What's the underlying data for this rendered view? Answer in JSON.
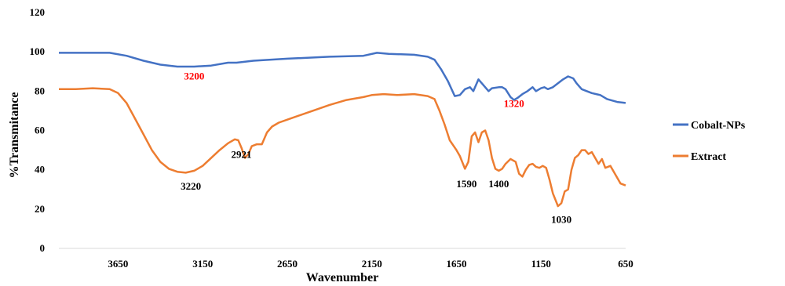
{
  "chart_data": {
    "type": "line",
    "xlabel": "Wavenumber",
    "ylabel": "%Transmitance",
    "xlim": [
      4000,
      650
    ],
    "ylim": [
      0,
      120
    ],
    "x_reversed": true,
    "xticks": [
      3650,
      3150,
      2650,
      2150,
      1650,
      1150,
      650
    ],
    "yticks": [
      0,
      20,
      40,
      60,
      80,
      100,
      120
    ],
    "grid": false,
    "legend": "right",
    "series": [
      {
        "name": "Cobalt-NPs",
        "color": "#4472C4",
        "points": [
          [
            4000,
            99.5
          ],
          [
            3850,
            99.5
          ],
          [
            3700,
            99.5
          ],
          [
            3600,
            98
          ],
          [
            3500,
            95.5
          ],
          [
            3400,
            93.5
          ],
          [
            3300,
            92.5
          ],
          [
            3200,
            92.5
          ],
          [
            3100,
            93
          ],
          [
            3000,
            94.5
          ],
          [
            2950,
            94.5
          ],
          [
            2850,
            95.5
          ],
          [
            2650,
            96.5
          ],
          [
            2400,
            97.5
          ],
          [
            2200,
            98
          ],
          [
            2120,
            99.5
          ],
          [
            2050,
            99
          ],
          [
            1900,
            98.5
          ],
          [
            1820,
            97.5
          ],
          [
            1780,
            96
          ],
          [
            1740,
            91
          ],
          [
            1700,
            85
          ],
          [
            1660,
            77.5
          ],
          [
            1630,
            78
          ],
          [
            1600,
            81
          ],
          [
            1570,
            82
          ],
          [
            1550,
            80
          ],
          [
            1520,
            86
          ],
          [
            1500,
            84
          ],
          [
            1480,
            82
          ],
          [
            1460,
            80
          ],
          [
            1440,
            81.5
          ],
          [
            1400,
            82
          ],
          [
            1380,
            82
          ],
          [
            1360,
            81
          ],
          [
            1330,
            77
          ],
          [
            1310,
            75.5
          ],
          [
            1290,
            76.5
          ],
          [
            1260,
            78.5
          ],
          [
            1230,
            80
          ],
          [
            1200,
            82
          ],
          [
            1180,
            80
          ],
          [
            1150,
            81.5
          ],
          [
            1130,
            82
          ],
          [
            1110,
            81
          ],
          [
            1080,
            82
          ],
          [
            1050,
            84
          ],
          [
            1020,
            86
          ],
          [
            990,
            87.5
          ],
          [
            960,
            86.5
          ],
          [
            940,
            84
          ],
          [
            910,
            81
          ],
          [
            880,
            80
          ],
          [
            850,
            79
          ],
          [
            800,
            78
          ],
          [
            760,
            76
          ],
          [
            700,
            74.5
          ],
          [
            650,
            74
          ]
        ]
      },
      {
        "name": "Extract",
        "color": "#ED7D31",
        "points": [
          [
            4000,
            81
          ],
          [
            3900,
            81
          ],
          [
            3800,
            81.5
          ],
          [
            3700,
            81
          ],
          [
            3650,
            79
          ],
          [
            3600,
            74
          ],
          [
            3550,
            66
          ],
          [
            3500,
            58
          ],
          [
            3450,
            50
          ],
          [
            3400,
            44
          ],
          [
            3350,
            40.5
          ],
          [
            3300,
            39
          ],
          [
            3250,
            38.5
          ],
          [
            3200,
            39.5
          ],
          [
            3150,
            42
          ],
          [
            3100,
            46
          ],
          [
            3050,
            50
          ],
          [
            3000,
            53.5
          ],
          [
            2960,
            55.5
          ],
          [
            2940,
            55
          ],
          [
            2920,
            51
          ],
          [
            2900,
            46
          ],
          [
            2880,
            48
          ],
          [
            2860,
            52
          ],
          [
            2830,
            53
          ],
          [
            2800,
            53
          ],
          [
            2770,
            59
          ],
          [
            2740,
            62
          ],
          [
            2700,
            64
          ],
          [
            2650,
            65.5
          ],
          [
            2500,
            70
          ],
          [
            2400,
            73
          ],
          [
            2300,
            75.5
          ],
          [
            2200,
            77
          ],
          [
            2150,
            78
          ],
          [
            2080,
            78.5
          ],
          [
            2000,
            78
          ],
          [
            1900,
            78.5
          ],
          [
            1820,
            77.5
          ],
          [
            1780,
            76
          ],
          [
            1750,
            70
          ],
          [
            1720,
            63
          ],
          [
            1690,
            55
          ],
          [
            1650,
            50
          ],
          [
            1630,
            47
          ],
          [
            1600,
            40.5
          ],
          [
            1580,
            44
          ],
          [
            1560,
            57
          ],
          [
            1540,
            59
          ],
          [
            1520,
            54
          ],
          [
            1500,
            59
          ],
          [
            1480,
            60
          ],
          [
            1460,
            55
          ],
          [
            1440,
            46
          ],
          [
            1420,
            40.5
          ],
          [
            1400,
            39.5
          ],
          [
            1380,
            40.5
          ],
          [
            1360,
            43
          ],
          [
            1330,
            45.5
          ],
          [
            1300,
            44
          ],
          [
            1280,
            38
          ],
          [
            1260,
            36.5
          ],
          [
            1240,
            40
          ],
          [
            1220,
            42.5
          ],
          [
            1200,
            43
          ],
          [
            1180,
            41.5
          ],
          [
            1160,
            41
          ],
          [
            1140,
            42
          ],
          [
            1120,
            41
          ],
          [
            1100,
            35
          ],
          [
            1080,
            28
          ],
          [
            1050,
            21.5
          ],
          [
            1030,
            23
          ],
          [
            1010,
            29
          ],
          [
            990,
            30
          ],
          [
            970,
            40
          ],
          [
            950,
            46
          ],
          [
            930,
            47.5
          ],
          [
            910,
            50
          ],
          [
            890,
            50
          ],
          [
            870,
            48
          ],
          [
            850,
            49
          ],
          [
            830,
            46
          ],
          [
            810,
            43
          ],
          [
            790,
            45.5
          ],
          [
            770,
            41
          ],
          [
            740,
            42
          ],
          [
            720,
            39
          ],
          [
            700,
            36
          ],
          [
            680,
            33
          ],
          [
            650,
            32
          ]
        ]
      }
    ],
    "annotations": [
      {
        "text": "3200",
        "x": 3200,
        "y": 86,
        "color": "#FF0000",
        "series": "Cobalt-NPs"
      },
      {
        "text": "1320",
        "x": 1310,
        "y": 72,
        "color": "#FF0000",
        "series": "Cobalt-NPs"
      },
      {
        "text": "3220",
        "x": 3220,
        "y": 30,
        "color": "#000000",
        "series": "Extract"
      },
      {
        "text": "2921",
        "x": 2921,
        "y": 46,
        "color": "#000000",
        "series": "Extract"
      },
      {
        "text": "1590",
        "x": 1590,
        "y": 31,
        "color": "#000000",
        "series": "Extract"
      },
      {
        "text": "1400",
        "x": 1400,
        "y": 31,
        "color": "#000000",
        "series": "Extract"
      },
      {
        "text": "1030",
        "x": 1030,
        "y": 13,
        "color": "#000000",
        "series": "Extract"
      }
    ]
  }
}
